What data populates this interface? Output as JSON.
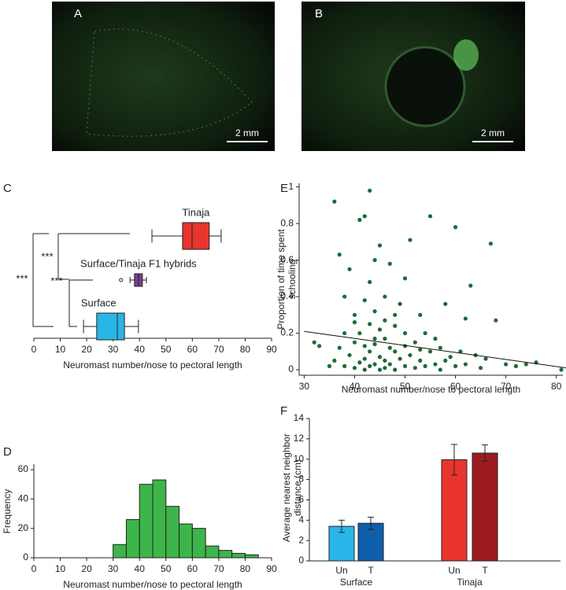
{
  "photos": [
    {
      "label": "A",
      "scale": "2 mm"
    },
    {
      "label": "B",
      "scale": "2 mm"
    }
  ],
  "chart_data": [
    {
      "type": "box",
      "panel": "C",
      "xlabel": "Neuromast number/nose to pectoral length",
      "categories": [
        "Tinaja",
        "Surface/Tinaja F1 hybrids",
        "Surface"
      ],
      "colors": [
        "#e8342c",
        "#7b3f98",
        "#29b5e8"
      ],
      "boxes": [
        {
          "whisker_low": 44.7,
          "q1": 56.3,
          "median": 59.9,
          "q3": 66.4,
          "whisker_high": 70.9,
          "outliers": []
        },
        {
          "whisker_low": 36.4,
          "q1": 38.1,
          "median": 39.6,
          "q3": 41.1,
          "whisker_high": 42.6,
          "outliers": [
            33
          ]
        },
        {
          "whisker_low": 18.8,
          "q1": 23.8,
          "median": 31.6,
          "q3": 34.3,
          "whisker_high": 39.6,
          "outliers": []
        }
      ],
      "annotations": [
        "***",
        "***",
        "***"
      ],
      "xlim": [
        0,
        90
      ],
      "xticks": [
        0,
        10,
        20,
        30,
        40,
        50,
        60,
        70,
        80,
        90
      ]
    },
    {
      "type": "histogram",
      "panel": "D",
      "xlabel": "Neuromast number/nose to pectoral length",
      "ylabel": "Frequency",
      "bins": [
        30,
        35,
        40,
        45,
        50,
        55,
        60,
        65,
        70,
        75,
        80,
        85
      ],
      "values": [
        9,
        26,
        50,
        53,
        35,
        23,
        20,
        8,
        5,
        3,
        2
      ],
      "color": "#3db54a",
      "xlim": [
        0,
        90
      ],
      "xticks": [
        0,
        10,
        20,
        30,
        40,
        50,
        60,
        70,
        80,
        90
      ],
      "ylim": [
        0,
        60
      ],
      "yticks": [
        0,
        20,
        40,
        60
      ]
    },
    {
      "type": "scatter",
      "panel": "E",
      "xlabel": "Neuromast number/nose to pectoral length",
      "ylabel": [
        "Proportion of time spent",
        "schooling"
      ],
      "color": "#1e6b34",
      "x": [
        32,
        33,
        35,
        36,
        36,
        37,
        37,
        38,
        38,
        39,
        39,
        40,
        40,
        40,
        41,
        41,
        41,
        42,
        42,
        42,
        42,
        43,
        43,
        43,
        43,
        43,
        44,
        44,
        44,
        44,
        45,
        45,
        45,
        45,
        46,
        46,
        46,
        46,
        47,
        47,
        47,
        48,
        48,
        48,
        49,
        49,
        50,
        50,
        50,
        51,
        51,
        52,
        52,
        53,
        53,
        54,
        54,
        55,
        55,
        56,
        56,
        57,
        57,
        58,
        59,
        60,
        60,
        61,
        62,
        63,
        64,
        65,
        66,
        67,
        68,
        70,
        72,
        74,
        76,
        81,
        42,
        44,
        40,
        48,
        50,
        53,
        58,
        62,
        46,
        38
      ],
      "values": [
        0.15,
        0.13,
        0.02,
        0.92,
        0.05,
        0.63,
        0.12,
        0.4,
        0.02,
        0.55,
        0.08,
        0.3,
        0.15,
        0.01,
        0.82,
        0.2,
        0.04,
        0.38,
        0.13,
        0.06,
        0,
        0.98,
        0.48,
        0.25,
        0.1,
        0.02,
        0.6,
        0.32,
        0.14,
        0.03,
        0.68,
        0.22,
        0.07,
        0,
        0.4,
        0.17,
        0.05,
        0.01,
        0.58,
        0.12,
        0.03,
        0.3,
        0.1,
        0,
        0.36,
        0.06,
        0.5,
        0.2,
        0.02,
        0.71,
        0.08,
        0.15,
        0.01,
        0.3,
        0.05,
        0.2,
        0.02,
        0.84,
        0.1,
        0.17,
        0.03,
        0.12,
        0,
        0.36,
        0.07,
        0.78,
        0.02,
        0.1,
        0.03,
        0.46,
        0.08,
        0.01,
        0.06,
        0.69,
        0.27,
        0.03,
        0.02,
        0.03,
        0.04,
        0,
        0.84,
        0.17,
        0.26,
        0.24,
        0.13,
        0.11,
        0.05,
        0.28,
        0.27,
        0.2
      ],
      "trend": {
        "x": [
          30,
          82
        ],
        "values": [
          0.21,
          0.01
        ]
      },
      "xlim": [
        29,
        81.3
      ],
      "xticks": [
        30,
        40,
        50,
        60,
        70,
        80
      ],
      "ylim": [
        -0.03,
        1.02
      ],
      "yticks": [
        0,
        0.2,
        0.4,
        0.6,
        0.8,
        1
      ]
    },
    {
      "type": "bar",
      "panel": "F",
      "ylabel": [
        "Average nearest neighbor",
        "distance (cm)"
      ],
      "categories": [
        "Un",
        "T",
        "Un",
        "T"
      ],
      "groups": [
        "Surface",
        "Tinaja"
      ],
      "values": [
        3.4,
        3.7,
        9.95,
        10.6
      ],
      "errors": [
        0.6,
        0.6,
        1.5,
        0.8
      ],
      "colors": [
        "#29b5e8",
        "#0f5fad",
        "#e8342c",
        "#9b1b1f"
      ],
      "ylim": [
        0,
        14
      ],
      "yticks": [
        0,
        2,
        4,
        6,
        8,
        10,
        12,
        14
      ]
    }
  ]
}
